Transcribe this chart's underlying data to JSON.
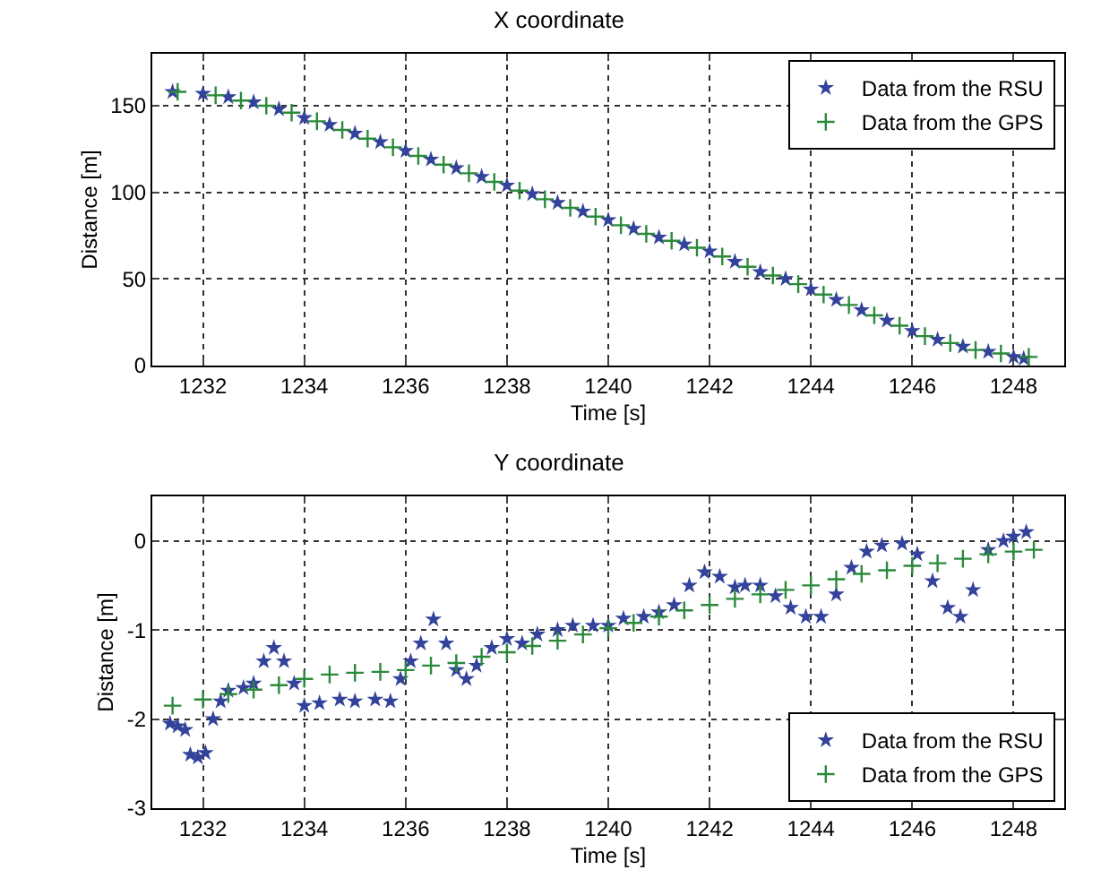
{
  "chart_data": [
    {
      "type": "scatter",
      "title": "X coordinate",
      "xlabel": "Time [s]",
      "ylabel": "Distance [m]",
      "xlim": [
        1231,
        1249
      ],
      "xticks": [
        1232,
        1234,
        1236,
        1238,
        1240,
        1242,
        1244,
        1246,
        1248
      ],
      "ylim": [
        0,
        180
      ],
      "yticks": [
        0,
        50,
        100,
        150
      ],
      "grid": true,
      "legend": "top right",
      "series": [
        {
          "name": "Data from the RSU",
          "color": "#33429a",
          "marker": "star",
          "x": [
            1231.4,
            1232,
            1232.5,
            1233,
            1233.5,
            1234,
            1234.5,
            1235,
            1235.5,
            1236,
            1236.5,
            1237,
            1237.5,
            1238,
            1238.5,
            1239,
            1239.5,
            1240,
            1240.5,
            1241,
            1241.5,
            1242,
            1242.5,
            1243,
            1243.5,
            1244,
            1244.5,
            1245,
            1245.5,
            1246,
            1246.5,
            1247,
            1247.5,
            1248,
            1248.2
          ],
          "values": [
            158,
            157,
            155,
            152,
            148,
            143,
            139,
            134,
            129,
            124,
            119,
            114,
            109,
            104,
            99,
            94,
            89,
            84,
            79,
            74,
            70,
            66,
            60,
            54,
            50,
            44,
            38,
            32,
            26,
            20,
            15,
            11,
            8,
            5,
            4
          ]
        },
        {
          "name": "Data from the GPS",
          "color": "#2a8a3a",
          "marker": "cross",
          "x": [
            1231.5,
            1232.25,
            1232.75,
            1233.25,
            1233.75,
            1234.25,
            1234.75,
            1235.25,
            1235.75,
            1236.25,
            1236.75,
            1237.25,
            1237.75,
            1238.25,
            1238.75,
            1239.25,
            1239.75,
            1240.25,
            1240.75,
            1241.25,
            1241.75,
            1242.25,
            1242.75,
            1243.25,
            1243.75,
            1244.25,
            1244.75,
            1245.25,
            1245.75,
            1246.25,
            1246.75,
            1247.25,
            1247.75,
            1248.3
          ],
          "values": [
            158,
            156,
            153,
            150,
            146,
            141,
            136,
            131,
            126,
            121,
            116,
            111,
            106,
            101,
            96,
            91,
            86,
            81,
            76,
            72,
            68,
            63,
            57,
            52,
            47,
            41,
            35,
            29,
            23,
            17,
            13,
            9,
            7,
            5
          ]
        }
      ]
    },
    {
      "type": "scatter",
      "title": "Y coordinate",
      "xlabel": "Time [s]",
      "ylabel": "Distance [m]",
      "xlim": [
        1231,
        1249
      ],
      "xticks": [
        1232,
        1234,
        1236,
        1238,
        1240,
        1242,
        1244,
        1246,
        1248
      ],
      "ylim": [
        -3,
        0.5
      ],
      "yticks": [
        -3,
        -2,
        -1,
        0
      ],
      "grid": true,
      "legend": "bottom right",
      "series": [
        {
          "name": "Data from the RSU",
          "color": "#33429a",
          "marker": "star",
          "x": [
            1231.35,
            1231.5,
            1231.65,
            1231.75,
            1231.9,
            1232.05,
            1232.2,
            1232.35,
            1232.5,
            1232.8,
            1233,
            1233.2,
            1233.4,
            1233.6,
            1233.8,
            1234,
            1234.3,
            1234.7,
            1235,
            1235.4,
            1235.7,
            1235.9,
            1236.1,
            1236.3,
            1236.55,
            1236.8,
            1237,
            1237.2,
            1237.4,
            1237.7,
            1238,
            1238.3,
            1238.6,
            1239,
            1239.3,
            1239.7,
            1240,
            1240.3,
            1240.7,
            1241,
            1241.3,
            1241.6,
            1241.9,
            1242.2,
            1242.5,
            1242.7,
            1243,
            1243.3,
            1243.6,
            1243.9,
            1244.2,
            1244.5,
            1244.8,
            1245.1,
            1245.4,
            1245.8,
            1246.1,
            1246.4,
            1246.7,
            1246.95,
            1247.2,
            1247.5,
            1247.8,
            1248,
            1248.25
          ],
          "values": [
            -2.05,
            -2.08,
            -2.12,
            -2.4,
            -2.43,
            -2.38,
            -2.0,
            -1.8,
            -1.68,
            -1.65,
            -1.6,
            -1.35,
            -1.2,
            -1.35,
            -1.6,
            -1.85,
            -1.82,
            -1.78,
            -1.8,
            -1.78,
            -1.8,
            -1.55,
            -1.35,
            -1.15,
            -0.88,
            -1.15,
            -1.45,
            -1.55,
            -1.4,
            -1.2,
            -1.1,
            -1.15,
            -1.05,
            -1.0,
            -0.95,
            -0.95,
            -0.95,
            -0.87,
            -0.85,
            -0.8,
            -0.72,
            -0.5,
            -0.35,
            -0.4,
            -0.52,
            -0.5,
            -0.5,
            -0.62,
            -0.75,
            -0.85,
            -0.85,
            -0.6,
            -0.3,
            -0.12,
            -0.05,
            -0.03,
            -0.15,
            -0.45,
            -0.75,
            -0.85,
            -0.55,
            -0.1,
            0.0,
            0.05,
            0.1
          ]
        },
        {
          "name": "Data from the GPS",
          "color": "#2a8a3a",
          "marker": "cross",
          "x": [
            1231.4,
            1232,
            1232.5,
            1233,
            1233.5,
            1234,
            1234.5,
            1235,
            1235.5,
            1236,
            1236.5,
            1237,
            1237.5,
            1238,
            1238.5,
            1239,
            1239.5,
            1240,
            1240.5,
            1241,
            1241.5,
            1242,
            1242.5,
            1243,
            1243.5,
            1244,
            1244.5,
            1245,
            1245.5,
            1246,
            1246.5,
            1247,
            1247.5,
            1248,
            1248.4
          ],
          "values": [
            -1.85,
            -1.78,
            -1.72,
            -1.67,
            -1.62,
            -1.55,
            -1.5,
            -1.48,
            -1.47,
            -1.45,
            -1.4,
            -1.37,
            -1.3,
            -1.25,
            -1.18,
            -1.12,
            -1.05,
            -0.98,
            -0.92,
            -0.85,
            -0.78,
            -0.72,
            -0.65,
            -0.6,
            -0.55,
            -0.5,
            -0.43,
            -0.37,
            -0.33,
            -0.28,
            -0.25,
            -0.2,
            -0.15,
            -0.12,
            -0.1
          ]
        }
      ]
    }
  ]
}
